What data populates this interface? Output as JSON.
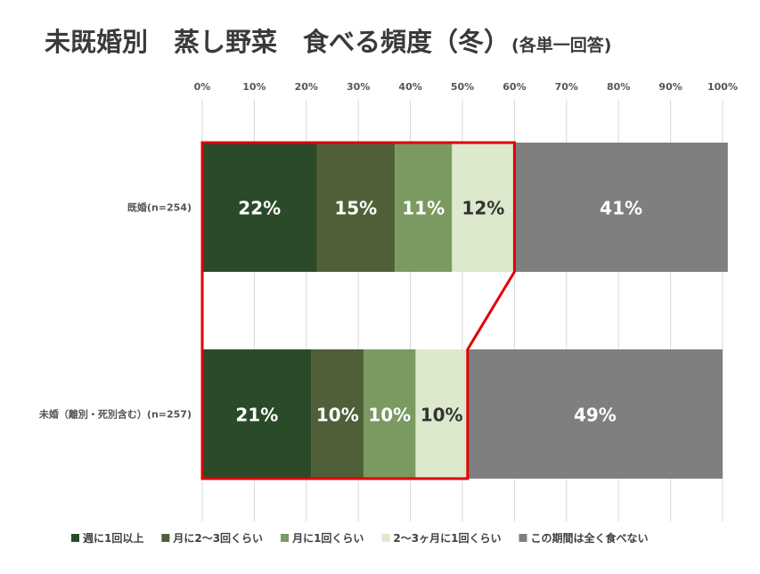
{
  "chart_data": {
    "type": "bar",
    "orientation": "horizontal",
    "stacked": true,
    "title": "未既婚別　蒸し野菜　食べる頻度（冬）",
    "subtitle": "(各単一回答)",
    "categories": [
      "既婚(n=254)",
      "未婚（離別・死別含む）(n=257)"
    ],
    "series": [
      {
        "name": "週に1回以上",
        "values": [
          22,
          21
        ],
        "color": "#2b4a29",
        "label_color": "#ffffff"
      },
      {
        "name": "月に2〜3回くらい",
        "values": [
          15,
          10
        ],
        "color": "#4f6039",
        "label_color": "#ffffff"
      },
      {
        "name": "月に1回くらい",
        "values": [
          11,
          10
        ],
        "color": "#7a9a62",
        "label_color": "#ffffff"
      },
      {
        "name": "2〜3ヶ月に1回くらい",
        "values": [
          12,
          10
        ],
        "color": "#dde9cc",
        "label_color": "#333333"
      },
      {
        "name": "この期間は全く食べない",
        "values": [
          41,
          49
        ],
        "color": "#7f7f7f",
        "label_color": "#ffffff"
      }
    ],
    "data_labels": [
      [
        "22%",
        "15%",
        "11%",
        "12%",
        "41%"
      ],
      [
        "21%",
        "10%",
        "10%",
        "10%",
        "49%"
      ]
    ],
    "xlim": [
      0,
      100
    ],
    "xticks": [
      "0%",
      "10%",
      "20%",
      "30%",
      "40%",
      "50%",
      "60%",
      "70%",
      "80%",
      "90%",
      "100%"
    ],
    "grid": true,
    "legend_position": "bottom",
    "highlight": {
      "color": "#e00000",
      "series_span": [
        0,
        3
      ]
    }
  }
}
